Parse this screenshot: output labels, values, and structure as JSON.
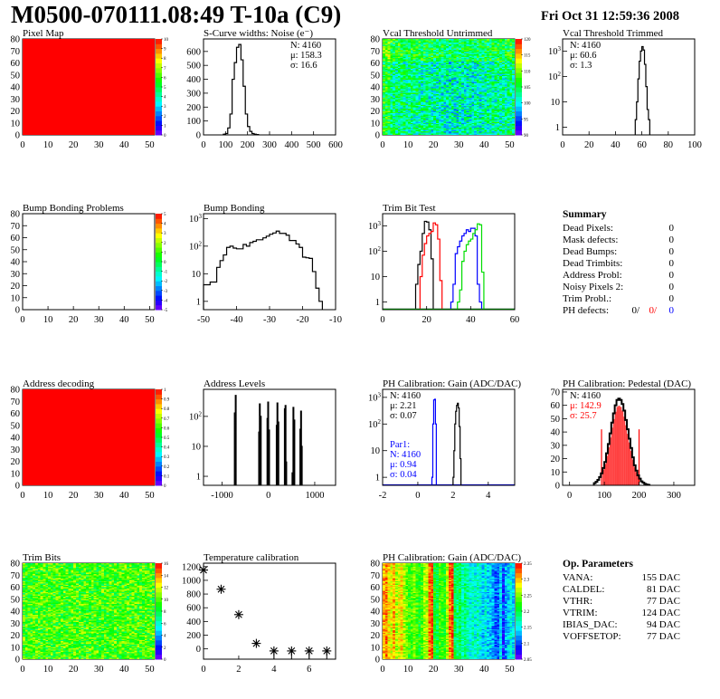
{
  "header": {
    "title": "M0500-070111.08:49 T-10a (C9)",
    "date": "Fri Oct 31 12:59:36 2008"
  },
  "panels": [
    {
      "type": "map",
      "title": "Pixel Map",
      "mode": "uniform",
      "xlim": [
        0,
        52
      ],
      "ylim": [
        0,
        80
      ],
      "x_ticks": [
        0,
        10,
        20,
        30,
        40,
        50
      ],
      "y_ticks": [
        0,
        10,
        20,
        30,
        40,
        50,
        60,
        70,
        80
      ],
      "palette_labels": [
        "0",
        "1",
        "2",
        "3",
        "4",
        "5",
        "6",
        "7",
        "8",
        "9",
        "10"
      ]
    },
    {
      "type": "hist",
      "title": "S-Curve widths: Noise (e⁻)",
      "log": false,
      "xlim": [
        0,
        600
      ],
      "ylim": [
        0,
        690
      ],
      "x_ticks": [
        0,
        100,
        200,
        300,
        400,
        500,
        600
      ],
      "y_ticks": [
        0,
        100,
        200,
        300,
        400,
        500,
        600
      ],
      "stats_position": "top-right",
      "stats": [
        {
          "text": "N: 4160",
          "color": "#000000"
        },
        {
          "text": "μ: 158.3",
          "color": "#000000"
        },
        {
          "text": "σ: 16.6",
          "color": "#000000"
        }
      ],
      "series": [
        {
          "color": "#000000",
          "x_start": 90,
          "bin_width": 10,
          "values": [
            5,
            10,
            50,
            150,
            400,
            520,
            630,
            650,
            540,
            350,
            150,
            60,
            25,
            10,
            5,
            3
          ]
        }
      ]
    },
    {
      "type": "map",
      "title": "Vcal Threshold Untrimmed",
      "mode": "noise-threshold",
      "xlim": [
        0,
        52
      ],
      "ylim": [
        0,
        80
      ],
      "x_ticks": [
        0,
        10,
        20,
        30,
        40,
        50
      ],
      "y_ticks": [
        0,
        10,
        20,
        30,
        40,
        50,
        60,
        70,
        80
      ],
      "palette_labels": [
        "90",
        "95",
        "100",
        "105",
        "110",
        "115",
        "120"
      ]
    },
    {
      "type": "hist",
      "title": "Vcal Threshold Trimmed",
      "log": true,
      "xlim": [
        0,
        100
      ],
      "ylim": [
        0.5,
        3000
      ],
      "x_ticks": [
        0,
        20,
        40,
        60,
        80,
        100
      ],
      "y_ticks": [
        1,
        10,
        100,
        1000
      ],
      "stats_position": "top-left",
      "stats": [
        {
          "text": "N: 4160",
          "color": "#000000"
        },
        {
          "text": "μ: 60.6",
          "color": "#000000"
        },
        {
          "text": "σ:  1.3",
          "color": "#000000"
        }
      ],
      "series": [
        {
          "color": "#000000",
          "x_start": 55,
          "bin_width": 1,
          "values": [
            2,
            10,
            80,
            400,
            1000,
            1500,
            1100,
            300,
            40,
            5,
            2
          ]
        }
      ]
    },
    {
      "type": "map",
      "title": "Bump Bonding Problems",
      "mode": "empty",
      "xlim": [
        0,
        52
      ],
      "ylim": [
        0,
        80
      ],
      "x_ticks": [
        0,
        10,
        20,
        30,
        40,
        50
      ],
      "y_ticks": [
        0,
        10,
        20,
        30,
        40,
        50,
        60,
        70,
        80
      ],
      "palette_labels": [
        "-5",
        "-4",
        "-3",
        "-2",
        "-1",
        "0",
        "1",
        "2",
        "3",
        "4",
        "5"
      ]
    },
    {
      "type": "hist",
      "title": "Bump Bonding",
      "log": true,
      "xlim": [
        -50,
        -10
      ],
      "ylim": [
        0.5,
        1500
      ],
      "x_ticks": [
        -50,
        -40,
        -30,
        -20,
        -10
      ],
      "y_ticks": [
        1,
        10,
        100,
        1000
      ],
      "series": [
        {
          "color": "#000000",
          "x_start": -50,
          "bin_width": 1,
          "values": [
            4,
            4,
            5,
            5,
            17,
            30,
            48,
            90,
            100,
            85,
            80,
            80,
            115,
            100,
            135,
            150,
            170,
            170,
            200,
            230,
            270,
            300,
            350,
            290,
            290,
            250,
            160,
            160,
            120,
            90,
            40,
            38,
            36,
            12,
            3,
            1
          ]
        }
      ]
    },
    {
      "type": "hist",
      "title": "Trim Bit Test",
      "log": true,
      "xlim": [
        0,
        60
      ],
      "ylim": [
        0.5,
        3000
      ],
      "x_ticks": [
        0,
        20,
        40,
        60
      ],
      "y_ticks": [
        1,
        10,
        100,
        1000
      ],
      "series": [
        {
          "color": "#000000",
          "x_start": 15,
          "bin_width": 1,
          "values": [
            5,
            30,
            100,
            500,
            1500,
            1400,
            700,
            50
          ]
        },
        {
          "color": "#ff0000",
          "x_start": 17,
          "bin_width": 1,
          "values": [
            10,
            70,
            200,
            400,
            500,
            600,
            1300,
            1100,
            300,
            7
          ]
        },
        {
          "color": "#0000ff",
          "x_start": 31,
          "bin_width": 1,
          "values": [
            1,
            5,
            80,
            150,
            250,
            400,
            500,
            700,
            600,
            800,
            800,
            400,
            5,
            1
          ]
        },
        {
          "color": "#00dd00",
          "x_start": 34,
          "bin_width": 1,
          "values": [
            1,
            3,
            40,
            100,
            180,
            250,
            300,
            500,
            700,
            1200,
            1100,
            15
          ]
        }
      ]
    },
    {
      "type": "text",
      "title": "Summary",
      "rows": [
        {
          "label": "Dead Pixels:",
          "values": [
            {
              "text": "0",
              "color": "#000000"
            }
          ]
        },
        {
          "label": "Mask defects:",
          "values": [
            {
              "text": "0",
              "color": "#000000"
            }
          ]
        },
        {
          "label": "Dead Bumps:",
          "values": [
            {
              "text": "0",
              "color": "#000000"
            }
          ]
        },
        {
          "label": "Dead Trimbits:",
          "values": [
            {
              "text": "0",
              "color": "#000000"
            }
          ]
        },
        {
          "label": "Address Probl:",
          "values": [
            {
              "text": "0",
              "color": "#000000"
            }
          ]
        },
        {
          "label": "Noisy Pixels 2:",
          "values": [
            {
              "text": "0",
              "color": "#000000"
            }
          ]
        },
        {
          "label": "Trim Probl.:",
          "values": [
            {
              "text": "0",
              "color": "#000000"
            }
          ]
        },
        {
          "label": "PH defects:",
          "values": [
            {
              "text": "0/",
              "color": "#000000"
            },
            {
              "text": "0/",
              "color": "#ff0000"
            },
            {
              "text": "0",
              "color": "#0000ff"
            }
          ]
        }
      ]
    },
    {
      "type": "map",
      "title": "Address decoding",
      "mode": "uniform",
      "xlim": [
        0,
        52
      ],
      "ylim": [
        0,
        80
      ],
      "x_ticks": [
        0,
        10,
        20,
        30,
        40,
        50
      ],
      "y_ticks": [
        0,
        10,
        20,
        30,
        40,
        50,
        60,
        70,
        80
      ],
      "palette_labels": [
        "0",
        "0.1",
        "0.2",
        "0.3",
        "0.4",
        "0.5",
        "0.6",
        "0.7",
        "0.8",
        "0.9",
        "1"
      ]
    },
    {
      "type": "hist",
      "title": "Address Levels",
      "log": true,
      "xlim": [
        -1400,
        1450
      ],
      "ylim": [
        0.5,
        800
      ],
      "x_ticks": [
        -1000,
        0,
        1000
      ],
      "y_ticks": [
        1,
        10,
        100
      ],
      "series": [
        {
          "color": "#000000",
          "spikes": [
            [
              -725,
              130
            ],
            [
              -705,
              500
            ],
            [
              -200,
              30
            ],
            [
              -185,
              260
            ],
            [
              -165,
              100
            ],
            [
              -20,
              85
            ],
            [
              -5,
              300
            ],
            [
              15,
              35
            ],
            [
              180,
              50
            ],
            [
              195,
              280
            ],
            [
              215,
              65
            ],
            [
              355,
              180
            ],
            [
              370,
              230
            ],
            [
              385,
              3
            ],
            [
              520,
              1.3
            ],
            [
              540,
              200
            ],
            [
              560,
              75
            ],
            [
              690,
              37
            ],
            [
              705,
              150
            ],
            [
              720,
              10
            ]
          ]
        }
      ]
    },
    {
      "type": "hist",
      "title": "PH Calibration: Gain (ADC/DAC)",
      "log": true,
      "xlim": [
        -2,
        5.5
      ],
      "ylim": [
        0.5,
        2000
      ],
      "x_ticks": [
        -2,
        0,
        2,
        4
      ],
      "y_ticks": [
        1,
        10,
        100,
        1000
      ],
      "stats_position": "top-left",
      "stats": [
        {
          "text": "N: 4160",
          "color": "#000000"
        },
        {
          "text": "μ: 2.21",
          "color": "#000000"
        },
        {
          "text": "σ: 0.07",
          "color": "#000000"
        }
      ],
      "stats2": [
        {
          "text": "Par1:",
          "color": "#0000ff"
        },
        {
          "text": "N: 4160",
          "color": "#0000ff"
        },
        {
          "text": "μ: 0.94",
          "color": "#0000ff"
        },
        {
          "text": "σ: 0.04",
          "color": "#0000ff"
        }
      ],
      "series": [
        {
          "color": "#0000ff",
          "x_start": 0.8,
          "bin_width": 0.05,
          "values": [
            1,
            100,
            800,
            850,
            100
          ],
          "baseline": true
        },
        {
          "color": "#000000",
          "x_start": 2.0,
          "bin_width": 0.05,
          "values": [
            1,
            10,
            100,
            300,
            500,
            600,
            400,
            80,
            5
          ]
        }
      ]
    },
    {
      "type": "hist",
      "title": "PH Calibration: Pedestal (DAC)",
      "log": false,
      "xlim": [
        -20,
        360
      ],
      "ylim": [
        0,
        72
      ],
      "x_ticks": [
        0,
        100,
        200,
        300
      ],
      "y_ticks": [
        0,
        10,
        20,
        30,
        40,
        50,
        60,
        70
      ],
      "stats_position": "top-left",
      "stats": [
        {
          "text": "N: 4160",
          "color": "#000000"
        },
        {
          "text": "μ: 142.9",
          "color": "#ff0000"
        },
        {
          "text": "σ: 25.7",
          "color": "#ff0000"
        }
      ],
      "fill": {
        "color": "#ff0000",
        "range": [
          92,
          200
        ]
      },
      "series": [
        {
          "color": "#000000",
          "x_start": 70,
          "bin_width": 5,
          "values": [
            1.6,
            2.6,
            4.1,
            6.2,
            9,
            13,
            17.5,
            24,
            31,
            39,
            47,
            54,
            60,
            64,
            65,
            64,
            61,
            56,
            49,
            42,
            35,
            28,
            21,
            15,
            11,
            7.5,
            5,
            3,
            2,
            1.1,
            0.6,
            0.3
          ]
        }
      ]
    },
    {
      "type": "map",
      "title": "Trim Bits",
      "mode": "noise-trim",
      "xlim": [
        0,
        52
      ],
      "ylim": [
        0,
        80
      ],
      "x_ticks": [
        0,
        10,
        20,
        30,
        40,
        50
      ],
      "y_ticks": [
        0,
        10,
        20,
        30,
        40,
        50,
        60,
        70,
        80
      ],
      "palette_labels": [
        "0",
        "2",
        "4",
        "6",
        "8",
        "10",
        "12",
        "14",
        "16"
      ]
    },
    {
      "type": "scatter",
      "title": "Temperature calibration",
      "xlim": [
        0,
        7.5
      ],
      "ylim": [
        -150,
        1250
      ],
      "x_ticks": [
        0,
        2,
        4,
        6
      ],
      "y_ticks": [
        0,
        200,
        400,
        600,
        800,
        1000,
        1200
      ],
      "points": [
        [
          0,
          1150
        ],
        [
          1,
          870
        ],
        [
          2,
          500
        ],
        [
          3,
          80
        ],
        [
          4,
          -30
        ],
        [
          5,
          -30
        ],
        [
          6,
          -30
        ],
        [
          7,
          -30
        ]
      ]
    },
    {
      "type": "map",
      "title": "PH Calibration: Gain (ADC/DAC)",
      "mode": "noise-gain",
      "xlim": [
        0,
        52
      ],
      "ylim": [
        0,
        80
      ],
      "x_ticks": [
        0,
        10,
        20,
        30,
        40,
        50
      ],
      "y_ticks": [
        0,
        10,
        20,
        30,
        40,
        50,
        60,
        70,
        80
      ],
      "palette_labels": [
        "2.05",
        "2.1",
        "2.15",
        "2.2",
        "2.25",
        "2.3",
        "2.35"
      ]
    },
    {
      "type": "text",
      "title": "Op. Parameters",
      "rows": [
        {
          "label": "VANA:",
          "values": [
            {
              "text": "155 DAC",
              "color": "#000000"
            }
          ]
        },
        {
          "label": "CALDEL:",
          "values": [
            {
              "text": "81 DAC",
              "color": "#000000"
            }
          ]
        },
        {
          "label": "VTHR:",
          "values": [
            {
              "text": "77 DAC",
              "color": "#000000"
            }
          ]
        },
        {
          "label": "VTRIM:",
          "values": [
            {
              "text": "124 DAC",
              "color": "#000000"
            }
          ]
        },
        {
          "label": "IBIAS_DAC:",
          "values": [
            {
              "text": "94 DAC",
              "color": "#000000"
            }
          ]
        },
        {
          "label": "VOFFSETOP:",
          "values": [
            {
              "text": "77 DAC",
              "color": "#000000"
            }
          ]
        }
      ]
    }
  ]
}
